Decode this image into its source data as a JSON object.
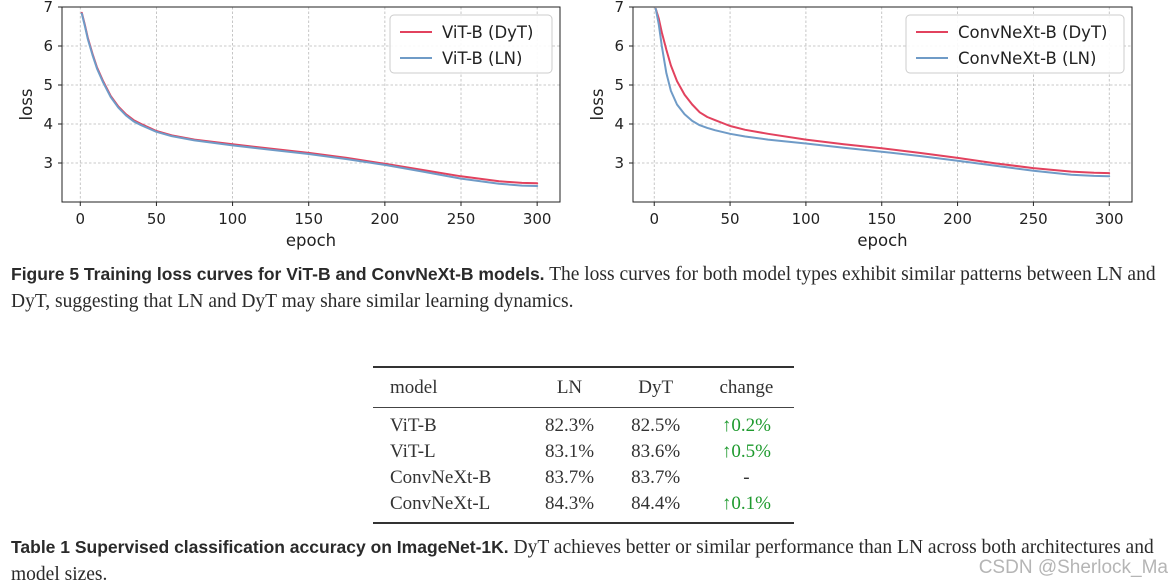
{
  "figure": {
    "caption_lead": "Figure 5  Training loss curves for ViT-B and ConvNeXt-B models.",
    "caption_body": " The loss curves for both model types exhibit similar patterns between LN and DyT, suggesting that LN and DyT may share similar learning dynamics."
  },
  "chart_data": [
    {
      "type": "line",
      "xlabel": "epoch",
      "ylabel": "loss",
      "xlim": [
        -12,
        315
      ],
      "ylim": [
        2.0,
        7.0
      ],
      "xticks": [
        0,
        50,
        100,
        150,
        200,
        250,
        300
      ],
      "yticks": [
        3,
        4,
        5,
        6,
        7
      ],
      "grid": true,
      "legend": "top-right",
      "series": [
        {
          "name": "ViT-B (DyT)",
          "color": "#e2425e",
          "x": [
            1,
            3,
            5,
            8,
            11,
            15,
            20,
            25,
            30,
            35,
            40,
            50,
            60,
            75,
            100,
            125,
            150,
            175,
            200,
            225,
            250,
            275,
            290,
            300
          ],
          "y": [
            6.85,
            6.55,
            6.2,
            5.8,
            5.45,
            5.1,
            4.72,
            4.45,
            4.25,
            4.1,
            4.0,
            3.82,
            3.71,
            3.6,
            3.48,
            3.37,
            3.26,
            3.13,
            2.98,
            2.82,
            2.66,
            2.53,
            2.49,
            2.48
          ]
        },
        {
          "name": "ViT-B (LN)",
          "color": "#6f9bc7",
          "x": [
            1,
            3,
            5,
            8,
            11,
            15,
            20,
            25,
            30,
            35,
            40,
            50,
            60,
            75,
            100,
            125,
            150,
            175,
            200,
            225,
            250,
            275,
            290,
            300
          ],
          "y": [
            6.83,
            6.52,
            6.17,
            5.77,
            5.42,
            5.07,
            4.69,
            4.42,
            4.22,
            4.07,
            3.97,
            3.8,
            3.69,
            3.58,
            3.45,
            3.34,
            3.23,
            3.1,
            2.95,
            2.78,
            2.6,
            2.47,
            2.42,
            2.41
          ]
        }
      ]
    },
    {
      "type": "line",
      "xlabel": "epoch",
      "ylabel": "loss",
      "xlim": [
        -14,
        315
      ],
      "ylim": [
        2.0,
        7.0
      ],
      "xticks": [
        0,
        50,
        100,
        150,
        200,
        250,
        300
      ],
      "yticks": [
        3,
        4,
        5,
        6,
        7
      ],
      "grid": true,
      "legend": "top-right",
      "series": [
        {
          "name": "ConvNeXt-B (DyT)",
          "color": "#e2425e",
          "x": [
            1,
            3,
            5,
            8,
            11,
            15,
            20,
            25,
            30,
            35,
            40,
            50,
            60,
            75,
            100,
            125,
            150,
            175,
            200,
            225,
            250,
            275,
            290,
            300
          ],
          "y": [
            6.95,
            6.7,
            6.35,
            5.9,
            5.5,
            5.1,
            4.75,
            4.5,
            4.3,
            4.18,
            4.1,
            3.95,
            3.85,
            3.75,
            3.6,
            3.48,
            3.38,
            3.26,
            3.13,
            2.99,
            2.87,
            2.78,
            2.75,
            2.74
          ]
        },
        {
          "name": "ConvNeXt-B (LN)",
          "color": "#6f9bc7",
          "x": [
            1,
            3,
            5,
            8,
            11,
            15,
            20,
            25,
            30,
            35,
            40,
            50,
            60,
            75,
            100,
            125,
            150,
            175,
            200,
            225,
            250,
            275,
            290,
            300
          ],
          "y": [
            6.95,
            6.55,
            6.0,
            5.3,
            4.85,
            4.5,
            4.25,
            4.08,
            3.97,
            3.9,
            3.84,
            3.75,
            3.68,
            3.6,
            3.5,
            3.39,
            3.29,
            3.18,
            3.06,
            2.93,
            2.8,
            2.7,
            2.67,
            2.66
          ]
        }
      ]
    }
  ],
  "table": {
    "headers": [
      "model",
      "LN",
      "DyT",
      "change"
    ],
    "rows": [
      {
        "model": "ViT-B",
        "ln": "82.3%",
        "dyt": "82.5%",
        "change": "↑0.2%"
      },
      {
        "model": "ViT-L",
        "ln": "83.1%",
        "dyt": "83.6%",
        "change": "↑0.5%"
      },
      {
        "model": "ConvNeXt-B",
        "ln": "83.7%",
        "dyt": "83.7%",
        "change": "-"
      },
      {
        "model": "ConvNeXt-L",
        "ln": "84.3%",
        "dyt": "84.4%",
        "change": "↑0.1%"
      }
    ],
    "caption_lead": "Table 1  Supervised classification accuracy on ImageNet-1K.",
    "caption_body": " DyT achieves better or similar performance than LN across both architectures and model sizes."
  },
  "watermark": "CSDN @Sherlock_Ma"
}
